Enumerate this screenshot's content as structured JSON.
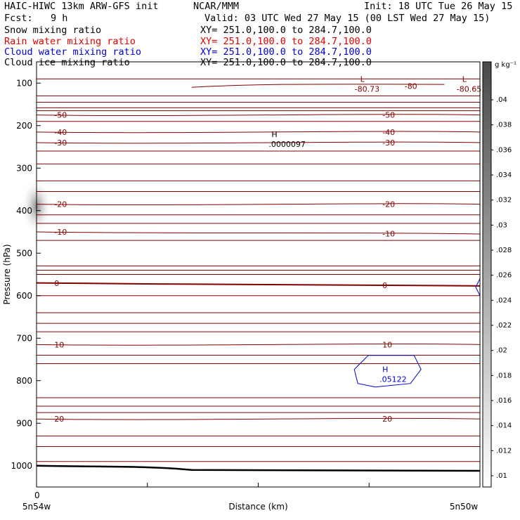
{
  "header": {
    "model": "HAIC-HIWC 13km ARW-GFS init",
    "org": "NCAR/MMM",
    "init": "Init: 18 UTC Tue 26 May 15",
    "fcst_label": "Fcst:",
    "fcst_value": "9 h",
    "valid": "Valid: 03 UTC Wed 27 May 15 (00 LST Wed 27 May 15)",
    "fields": [
      {
        "name": "Snow mixing ratio",
        "xy": "XY= 251.0,100.0 to 284.7,100.0",
        "color": "#000000"
      },
      {
        "name": "Rain water mixing ratio",
        "xy": "XY= 251.0,100.0 to 284.7,100.0",
        "color": "#e00000"
      },
      {
        "name": "Cloud water mixing ratio",
        "xy": "XY= 251.0,100.0 to 284.7,100.0",
        "color": "#0000cc"
      },
      {
        "name": "Cloud ice mixing ratio",
        "xy": "XY= 251.0,100.0 to 284.7,100.0",
        "color": "#000000"
      }
    ]
  },
  "chart_data": {
    "type": "line",
    "ylabel": "Pressure (hPa)",
    "xlabel": "Distance (km)",
    "x_start_label": "5n54w",
    "x_end_label": "5n50w",
    "x_zero_label": "0",
    "ylim": [
      1050,
      50
    ],
    "y_ticks": [
      100,
      200,
      300,
      400,
      500,
      600,
      700,
      800,
      900,
      1000
    ],
    "temperature_contours": [
      {
        "level": -50,
        "label": "-50",
        "pressures": [
          175,
          175
        ]
      },
      {
        "level": -40,
        "label": "-40",
        "pressures": [
          215,
          215
        ]
      },
      {
        "level": -30,
        "label": "-30",
        "pressures": [
          240,
          240
        ]
      },
      {
        "level": -20,
        "label": "-20",
        "pressures": [
          385,
          385
        ]
      },
      {
        "level": -10,
        "label": "-10",
        "pressures": [
          450,
          455
        ]
      },
      {
        "level": 0,
        "label": "0",
        "pressures": [
          570,
          577
        ]
      },
      {
        "level": 10,
        "label": "10",
        "pressures": [
          715,
          715
        ]
      },
      {
        "level": 20,
        "label": "20",
        "pressures": [
          890,
          890
        ]
      }
    ],
    "extrema": [
      {
        "type": "L",
        "value": "-80.73",
        "x_frac": 0.73,
        "p": 107
      },
      {
        "type": "L",
        "value": "-80.65",
        "x_frac": 0.96,
        "p": 107
      },
      {
        "type": "H",
        "value": ".0000097",
        "x_frac": 0.53,
        "p": 237
      },
      {
        "type": "H",
        "value": ".05122",
        "x_frac": 0.78,
        "p": 790
      }
    ],
    "extra_labels": [
      "-80"
    ],
    "colorbar": {
      "unit": "g kg⁻¹",
      "ticks": [
        ".04",
        ".038",
        ".036",
        ".034",
        ".032",
        ".03",
        ".028",
        ".026",
        ".024",
        ".022",
        ".02",
        ".018",
        ".016",
        ".014",
        ".012",
        ".01"
      ]
    }
  }
}
